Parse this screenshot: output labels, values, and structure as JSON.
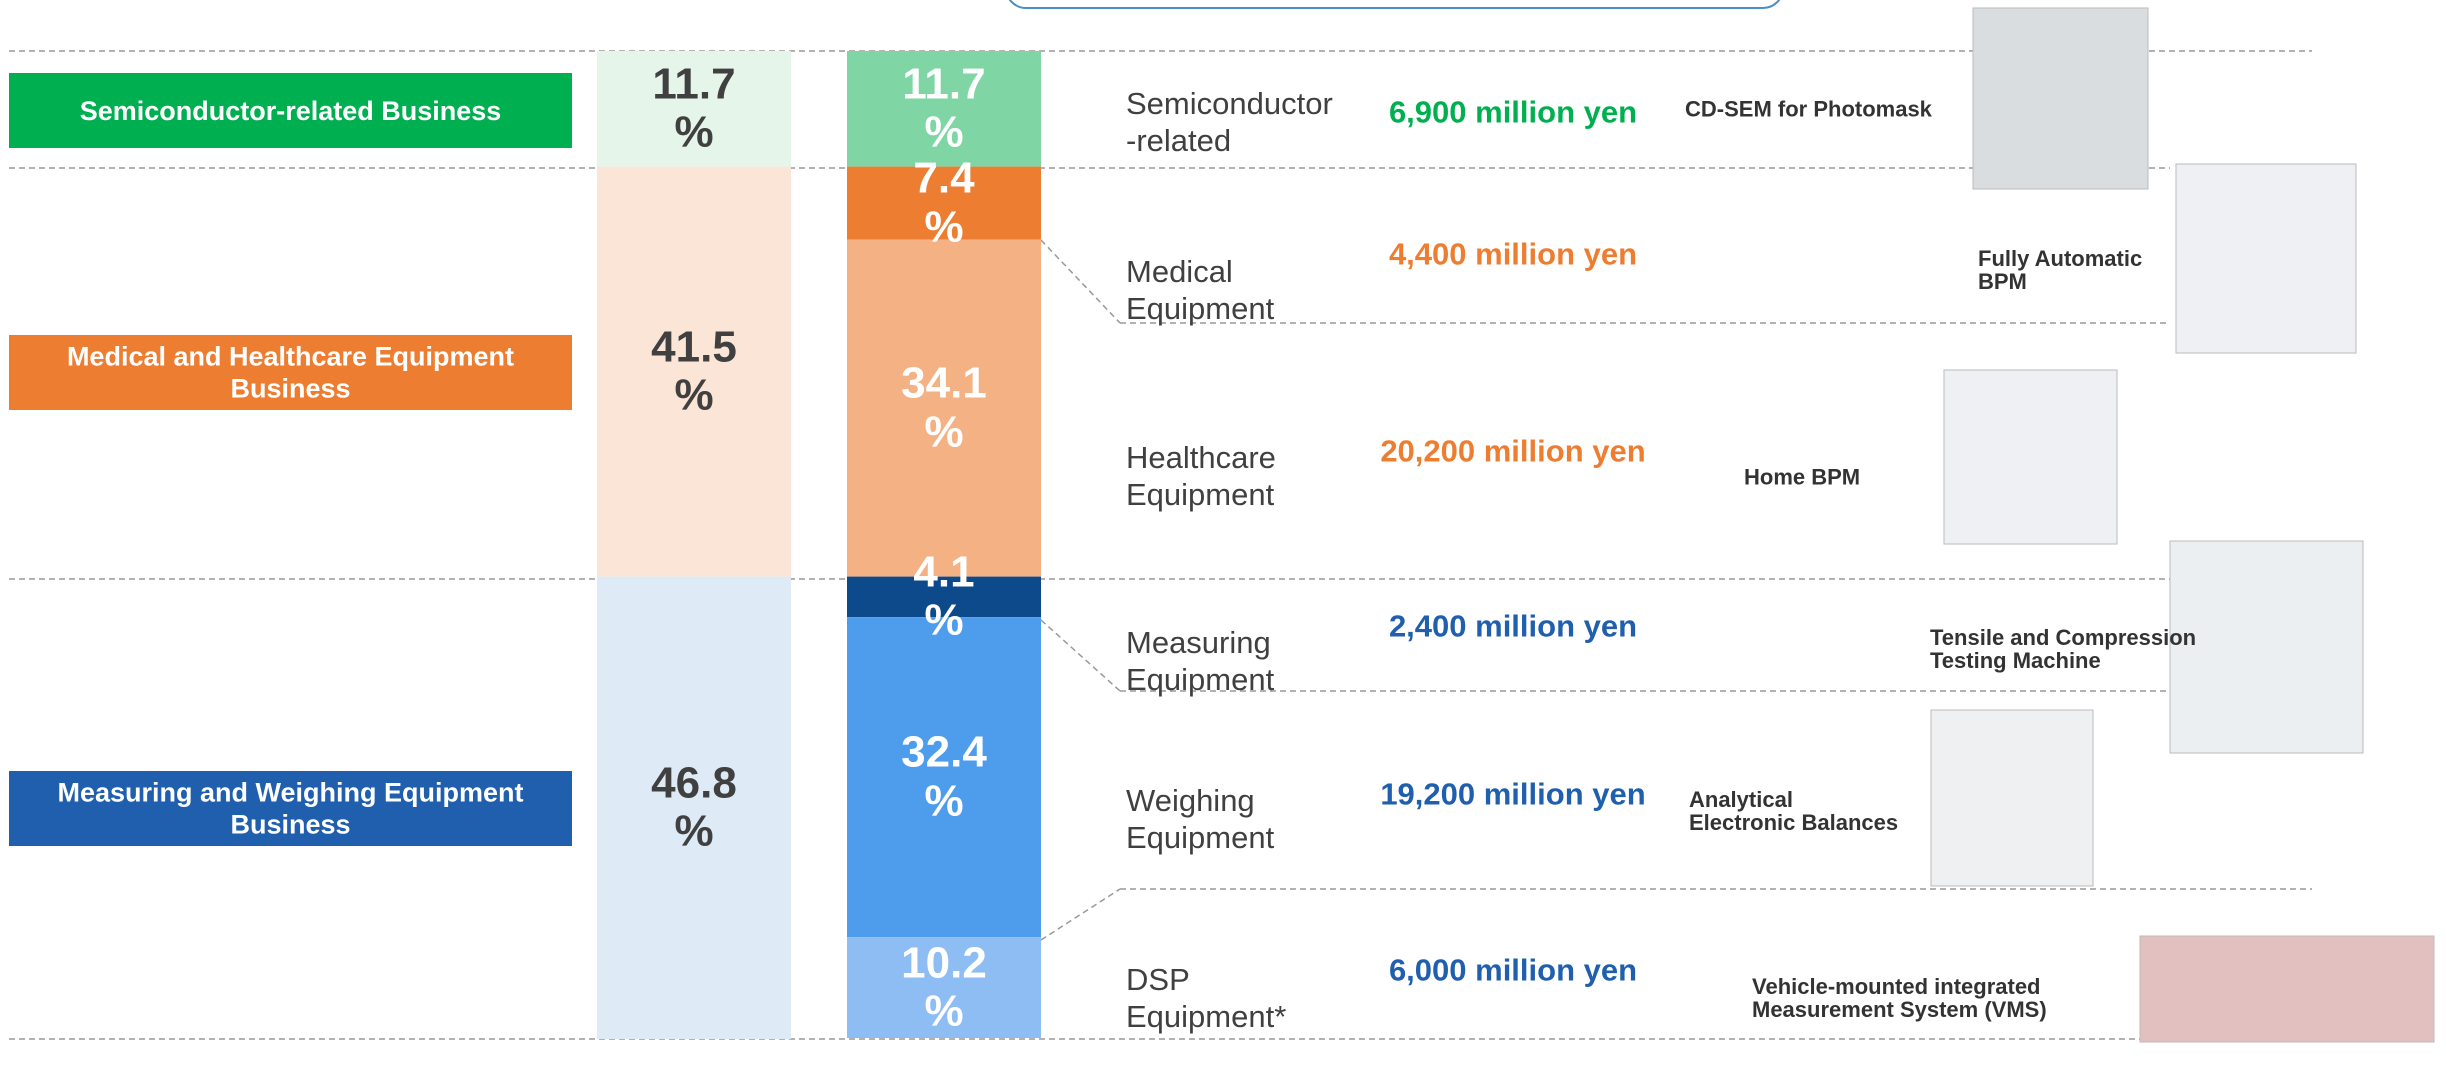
{
  "groups": [
    {
      "label": "Semiconductor-related Business",
      "percent": 11.7,
      "percent_label": "11.7\n%"
    },
    {
      "label": "Medical and Healthcare Equipment\nBusiness",
      "percent": 41.5,
      "percent_label": "41.5\n%"
    },
    {
      "label": "Measuring and Weighing Equipment\nBusiness",
      "percent": 46.8,
      "percent_label": "46.8\n%"
    }
  ],
  "items": [
    {
      "name": "Semiconductor\n-related",
      "percent": 11.7,
      "percent_label": "11.7\n%",
      "amount": "6,900 million yen",
      "product": "CD-SEM for Photomask"
    },
    {
      "name": "Medical\nEquipment",
      "percent": 7.4,
      "percent_label": "7.4\n%",
      "amount": "4,400 million yen",
      "product": "Fully Automatic\nBPM"
    },
    {
      "name": "Healthcare\nEquipment",
      "percent": 34.1,
      "percent_label": "34.1\n%",
      "amount": "20,200 million yen",
      "product": "Home BPM"
    },
    {
      "name": "Measuring\nEquipment",
      "percent": 4.1,
      "percent_label": "4.1\n%",
      "amount": "2,400 million yen",
      "product": "Tensile and Compression\nTesting Machine"
    },
    {
      "name": "Weighing\nEquipment",
      "percent": 32.4,
      "percent_label": "32.4\n%",
      "amount": "19,200 million yen",
      "product": "Analytical\nElectronic Balances"
    },
    {
      "name": "DSP\nEquipment*",
      "percent": 10.2,
      "percent_label": "10.2\n%",
      "amount": "6,000 million yen",
      "product": "Vehicle-mounted integrated\nMeasurement System (VMS)"
    }
  ]
}
